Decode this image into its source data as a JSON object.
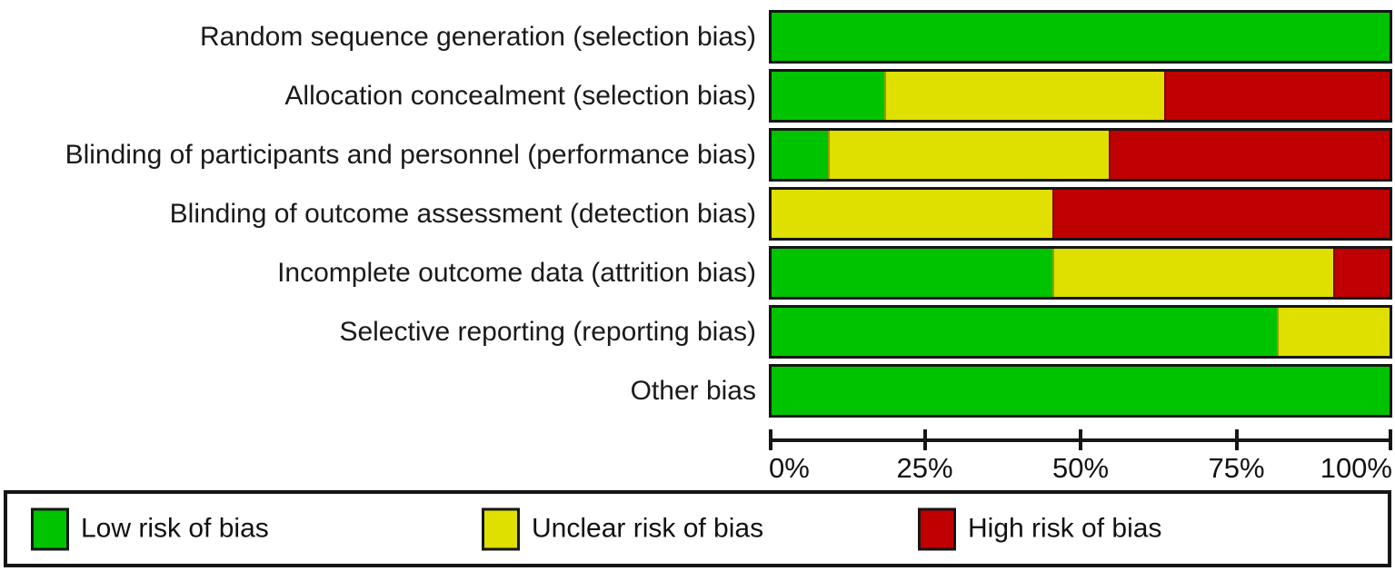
{
  "chart_data": {
    "type": "bar",
    "variant": "horizontal-stacked",
    "categories": [
      "Random sequence generation (selection bias)",
      "Allocation concealment (selection bias)",
      "Blinding of participants and personnel (performance bias)",
      "Blinding of outcome assessment (detection bias)",
      "Incomplete outcome data (attrition bias)",
      "Selective reporting (reporting bias)",
      "Other bias"
    ],
    "series": [
      {
        "name": "Low risk of bias",
        "color": "#00c300",
        "values": [
          100,
          18.2,
          9.1,
          0,
          45.5,
          81.8,
          100
        ]
      },
      {
        "name": "Unclear risk of bias",
        "color": "#dfdf00",
        "values": [
          0,
          45.4,
          45.4,
          45.5,
          45.4,
          18.2,
          0
        ]
      },
      {
        "name": "High risk of bias",
        "color": "#c00000",
        "values": [
          0,
          36.4,
          45.5,
          54.5,
          9.1,
          0,
          0
        ]
      }
    ],
    "xlim": [
      0,
      100
    ],
    "x_tick_positions": [
      0,
      25,
      50,
      75,
      100
    ],
    "x_tick_labels": [
      "0%",
      "25%",
      "50%",
      "75%",
      "100%"
    ],
    "grid": false,
    "legend_position": "bottom-box",
    "legend": [
      {
        "label": "Low risk of bias",
        "color": "#00c300"
      },
      {
        "label": "Unclear risk of bias",
        "color": "#dfdf00"
      },
      {
        "label": "High risk of bias",
        "color": "#c00000"
      }
    ],
    "colors": {
      "bar_border": "#161616",
      "axis": "#161616",
      "text": "#1a1a1a",
      "background": "#ffffff"
    }
  }
}
